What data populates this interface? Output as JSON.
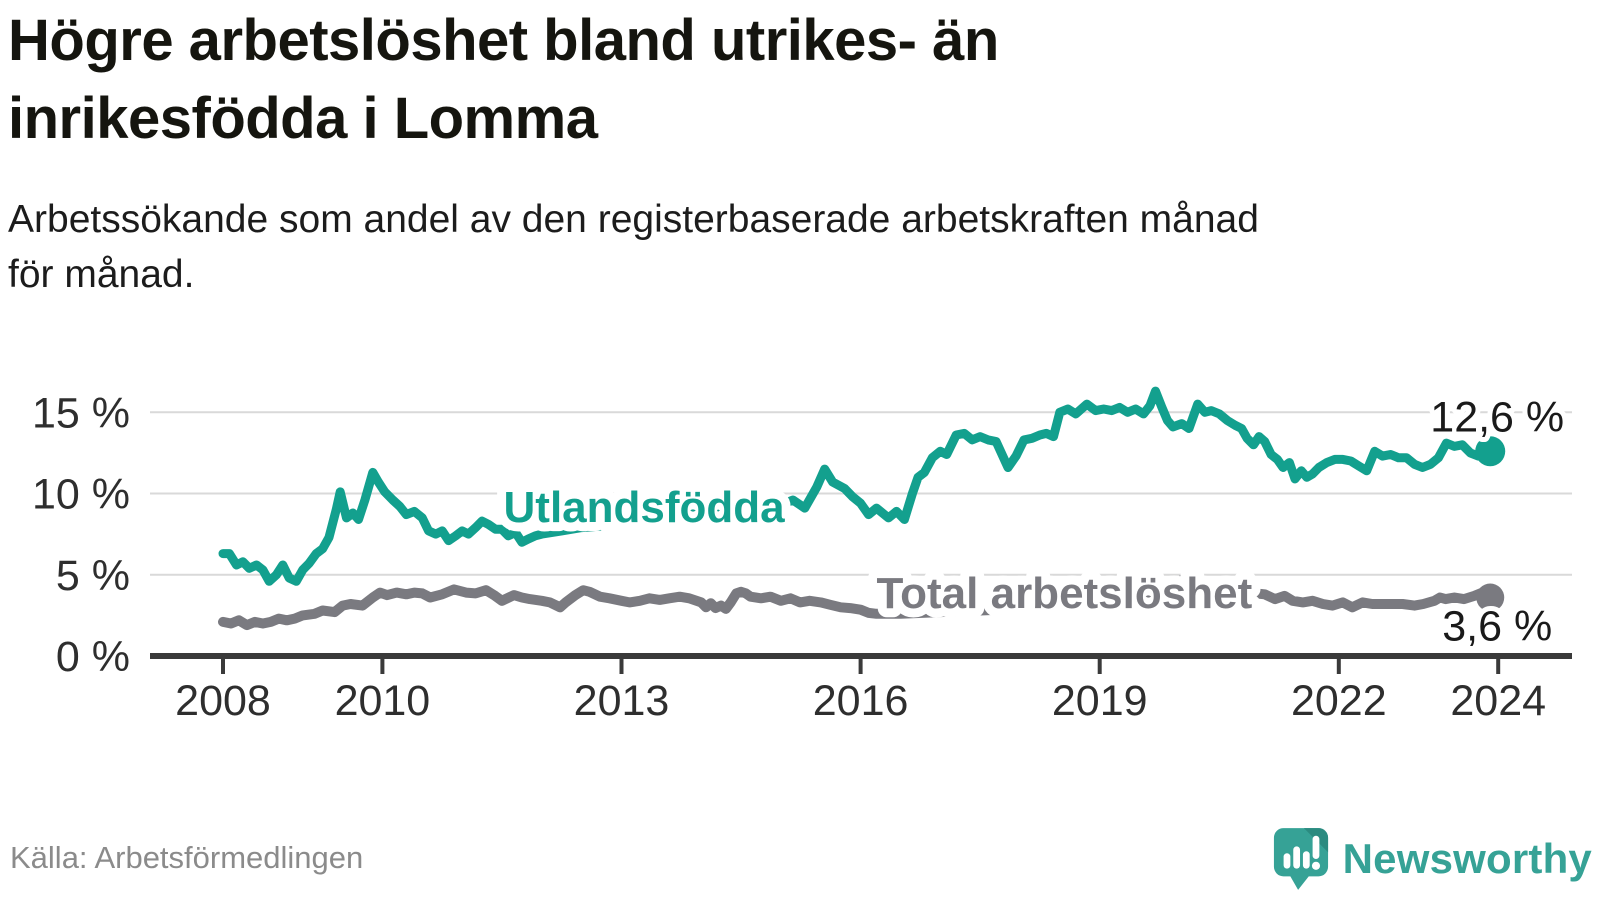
{
  "header": {
    "title": "Högre arbetslöshet bland utrikes- än\ninrikesfödda i Lomma",
    "subtitle": "Arbetssökande som andel av den registerbaserade arbetskraften månad\nför månad."
  },
  "footer": {
    "source": "Källa: Arbetsförmedlingen",
    "brand": "Newsworthy"
  },
  "chart_data": {
    "type": "line",
    "title": "Högre arbetslöshet bland utrikes- än inrikesfödda i Lomma",
    "subtitle": "Arbetssökande som andel av den registerbaserade arbetskraften månad för månad.",
    "grid": "horizontal",
    "legend": "inline-labels",
    "xlim": [
      2007.1,
      2024.9
    ],
    "ylim": [
      0,
      16.9
    ],
    "x_axis": {
      "ticks": [
        2008,
        2010,
        2013,
        2016,
        2019,
        2022,
        2024
      ],
      "labels": [
        "2008",
        "2010",
        "2013",
        "2016",
        "2019",
        "2022",
        "2024"
      ]
    },
    "y_axis": {
      "ticks": [
        0,
        5,
        10,
        15
      ],
      "labels": [
        "0 %",
        "5 %",
        "10 %",
        "15 %"
      ],
      "tick_suffix": " %"
    },
    "colors": {
      "grid": "#d9d9d9",
      "axis": "#3a3a3a",
      "axis_text": "#2e2e2e",
      "value_text": "#1a1a1a",
      "accent_teal": "#13a08e",
      "accent_gray": "#7a7a80"
    },
    "series": [
      {
        "id": "total",
        "name": "Total arbetslöshet",
        "color": "#7a7a80",
        "width": 10,
        "dot_r": 14,
        "end_label": "3,6 %",
        "end_value": 3.6,
        "value_dy": 43,
        "label_pos": [
          2016.2,
          2.95
        ],
        "points": [
          [
            2008.0,
            2.1
          ],
          [
            2008.1,
            2.0
          ],
          [
            2008.2,
            2.2
          ],
          [
            2008.3,
            1.9
          ],
          [
            2008.4,
            2.1
          ],
          [
            2008.5,
            2.0
          ],
          [
            2008.6,
            2.1
          ],
          [
            2008.7,
            2.3
          ],
          [
            2008.8,
            2.2
          ],
          [
            2008.9,
            2.3
          ],
          [
            2009.0,
            2.5
          ],
          [
            2009.15,
            2.6
          ],
          [
            2009.25,
            2.8
          ],
          [
            2009.4,
            2.7
          ],
          [
            2009.5,
            3.1
          ],
          [
            2009.6,
            3.2
          ],
          [
            2009.75,
            3.1
          ],
          [
            2009.88,
            3.6
          ],
          [
            2009.97,
            3.9
          ],
          [
            2010.06,
            3.75
          ],
          [
            2010.18,
            3.9
          ],
          [
            2010.3,
            3.8
          ],
          [
            2010.4,
            3.9
          ],
          [
            2010.5,
            3.85
          ],
          [
            2010.6,
            3.6
          ],
          [
            2010.75,
            3.8
          ],
          [
            2010.9,
            4.1
          ],
          [
            2011.05,
            3.9
          ],
          [
            2011.17,
            3.85
          ],
          [
            2011.3,
            4.05
          ],
          [
            2011.4,
            3.75
          ],
          [
            2011.5,
            3.4
          ],
          [
            2011.65,
            3.75
          ],
          [
            2011.75,
            3.6
          ],
          [
            2011.85,
            3.5
          ],
          [
            2012.0,
            3.4
          ],
          [
            2012.1,
            3.3
          ],
          [
            2012.23,
            3.0
          ],
          [
            2012.3,
            3.3
          ],
          [
            2012.42,
            3.75
          ],
          [
            2012.52,
            4.05
          ],
          [
            2012.6,
            3.95
          ],
          [
            2012.73,
            3.65
          ],
          [
            2012.85,
            3.55
          ],
          [
            2013.0,
            3.4
          ],
          [
            2013.1,
            3.3
          ],
          [
            2013.23,
            3.4
          ],
          [
            2013.35,
            3.55
          ],
          [
            2013.48,
            3.45
          ],
          [
            2013.6,
            3.55
          ],
          [
            2013.73,
            3.65
          ],
          [
            2013.85,
            3.55
          ],
          [
            2014.0,
            3.3
          ],
          [
            2014.06,
            3.0
          ],
          [
            2014.12,
            3.25
          ],
          [
            2014.18,
            2.95
          ],
          [
            2014.25,
            3.1
          ],
          [
            2014.31,
            2.9
          ],
          [
            2014.37,
            3.3
          ],
          [
            2014.44,
            3.85
          ],
          [
            2014.5,
            3.95
          ],
          [
            2014.56,
            3.85
          ],
          [
            2014.62,
            3.65
          ],
          [
            2014.75,
            3.55
          ],
          [
            2014.87,
            3.65
          ],
          [
            2015.0,
            3.4
          ],
          [
            2015.12,
            3.55
          ],
          [
            2015.24,
            3.3
          ],
          [
            2015.36,
            3.4
          ],
          [
            2015.5,
            3.3
          ],
          [
            2015.62,
            3.15
          ],
          [
            2015.75,
            3.0
          ],
          [
            2015.87,
            2.95
          ],
          [
            2016.0,
            2.85
          ],
          [
            2016.1,
            2.65
          ],
          [
            2016.2,
            2.6
          ],
          [
            2016.5,
            2.6
          ],
          [
            2017.0,
            2.7
          ],
          [
            2017.5,
            2.8
          ],
          [
            2018.0,
            2.9
          ],
          [
            2018.5,
            3.0
          ],
          [
            2019.0,
            3.1
          ],
          [
            2019.5,
            3.4
          ],
          [
            2019.8,
            3.8
          ],
          [
            2019.95,
            4.4
          ],
          [
            2020.1,
            4.9
          ],
          [
            2020.25,
            4.7
          ],
          [
            2020.4,
            4.4
          ],
          [
            2020.55,
            4.2
          ],
          [
            2020.75,
            4.0
          ],
          [
            2020.95,
            3.85
          ],
          [
            2021.07,
            3.8
          ],
          [
            2021.2,
            3.5
          ],
          [
            2021.32,
            3.7
          ],
          [
            2021.42,
            3.4
          ],
          [
            2021.55,
            3.3
          ],
          [
            2021.67,
            3.4
          ],
          [
            2021.8,
            3.2
          ],
          [
            2021.92,
            3.1
          ],
          [
            2022.05,
            3.3
          ],
          [
            2022.17,
            3.0
          ],
          [
            2022.3,
            3.3
          ],
          [
            2022.42,
            3.2
          ],
          [
            2022.6,
            3.2
          ],
          [
            2022.8,
            3.2
          ],
          [
            2022.95,
            3.1
          ],
          [
            2023.06,
            3.2
          ],
          [
            2023.2,
            3.4
          ],
          [
            2023.27,
            3.6
          ],
          [
            2023.34,
            3.5
          ],
          [
            2023.45,
            3.6
          ],
          [
            2023.57,
            3.5
          ],
          [
            2023.7,
            3.7
          ],
          [
            2023.8,
            3.9
          ],
          [
            2023.9,
            3.6
          ]
        ]
      },
      {
        "id": "utlandsfodda",
        "name": "Utlandsfödda",
        "color": "#13a08e",
        "width": 9,
        "dot_r": 15,
        "end_label": "12,6 %",
        "end_value": 12.6,
        "value_dy": -20,
        "label_pos": [
          2011.52,
          8.25
        ],
        "points": [
          [
            2008.0,
            6.3
          ],
          [
            2008.08,
            6.3
          ],
          [
            2008.17,
            5.6
          ],
          [
            2008.25,
            5.8
          ],
          [
            2008.33,
            5.4
          ],
          [
            2008.42,
            5.6
          ],
          [
            2008.5,
            5.3
          ],
          [
            2008.58,
            4.6
          ],
          [
            2008.67,
            5.0
          ],
          [
            2008.75,
            5.6
          ],
          [
            2008.83,
            4.8
          ],
          [
            2008.92,
            4.6
          ],
          [
            2009.0,
            5.3
          ],
          [
            2009.08,
            5.7
          ],
          [
            2009.17,
            6.3
          ],
          [
            2009.25,
            6.6
          ],
          [
            2009.33,
            7.3
          ],
          [
            2009.42,
            9.0
          ],
          [
            2009.47,
            10.1
          ],
          [
            2009.55,
            8.5
          ],
          [
            2009.63,
            8.8
          ],
          [
            2009.7,
            8.4
          ],
          [
            2009.78,
            9.6
          ],
          [
            2009.88,
            11.3
          ],
          [
            2009.95,
            10.7
          ],
          [
            2010.03,
            10.1
          ],
          [
            2010.13,
            9.6
          ],
          [
            2010.22,
            9.2
          ],
          [
            2010.3,
            8.7
          ],
          [
            2010.4,
            8.9
          ],
          [
            2010.5,
            8.5
          ],
          [
            2010.58,
            7.7
          ],
          [
            2010.67,
            7.5
          ],
          [
            2010.75,
            7.7
          ],
          [
            2010.83,
            7.1
          ],
          [
            2010.92,
            7.4
          ],
          [
            2011.0,
            7.7
          ],
          [
            2011.08,
            7.5
          ],
          [
            2011.17,
            7.9
          ],
          [
            2011.25,
            8.3
          ],
          [
            2011.33,
            8.1
          ],
          [
            2011.42,
            7.8
          ],
          [
            2011.5,
            7.8
          ],
          [
            2011.58,
            7.4
          ],
          [
            2011.67,
            7.6
          ],
          [
            2011.75,
            7.0
          ],
          [
            2011.83,
            7.2
          ],
          [
            2011.92,
            7.4
          ],
          [
            2012.0,
            7.5
          ],
          [
            2012.25,
            7.7
          ],
          [
            2012.5,
            7.9
          ],
          [
            2012.75,
            8.0
          ],
          [
            2013.0,
            8.1
          ],
          [
            2013.25,
            8.3
          ],
          [
            2013.5,
            8.5
          ],
          [
            2013.75,
            8.8
          ],
          [
            2014.0,
            9.0
          ],
          [
            2014.25,
            9.2
          ],
          [
            2014.5,
            9.4
          ],
          [
            2014.7,
            9.6
          ],
          [
            2014.85,
            9.9
          ],
          [
            2015.0,
            9.3
          ],
          [
            2015.15,
            9.6
          ],
          [
            2015.3,
            9.1
          ],
          [
            2015.45,
            10.4
          ],
          [
            2015.55,
            11.5
          ],
          [
            2015.65,
            10.7
          ],
          [
            2015.8,
            10.3
          ],
          [
            2015.9,
            9.8
          ],
          [
            2016.0,
            9.4
          ],
          [
            2016.1,
            8.7
          ],
          [
            2016.2,
            9.1
          ],
          [
            2016.35,
            8.5
          ],
          [
            2016.45,
            8.9
          ],
          [
            2016.55,
            8.4
          ],
          [
            2016.65,
            10.0
          ],
          [
            2016.72,
            11.0
          ],
          [
            2016.8,
            11.3
          ],
          [
            2016.9,
            12.2
          ],
          [
            2017.0,
            12.6
          ],
          [
            2017.08,
            12.4
          ],
          [
            2017.2,
            13.6
          ],
          [
            2017.3,
            13.7
          ],
          [
            2017.4,
            13.3
          ],
          [
            2017.5,
            13.5
          ],
          [
            2017.6,
            13.3
          ],
          [
            2017.7,
            13.2
          ],
          [
            2017.85,
            11.6
          ],
          [
            2017.95,
            12.3
          ],
          [
            2018.05,
            13.3
          ],
          [
            2018.15,
            13.4
          ],
          [
            2018.25,
            13.6
          ],
          [
            2018.33,
            13.7
          ],
          [
            2018.42,
            13.5
          ],
          [
            2018.5,
            15.0
          ],
          [
            2018.6,
            15.2
          ],
          [
            2018.7,
            14.9
          ],
          [
            2018.84,
            15.5
          ],
          [
            2018.95,
            15.1
          ],
          [
            2019.05,
            15.2
          ],
          [
            2019.15,
            15.1
          ],
          [
            2019.25,
            15.3
          ],
          [
            2019.35,
            15.0
          ],
          [
            2019.45,
            15.2
          ],
          [
            2019.55,
            14.9
          ],
          [
            2019.63,
            15.4
          ],
          [
            2019.7,
            16.3
          ],
          [
            2019.78,
            15.3
          ],
          [
            2019.85,
            14.5
          ],
          [
            2019.92,
            14.1
          ],
          [
            2020.03,
            14.3
          ],
          [
            2020.12,
            14.0
          ],
          [
            2020.23,
            15.5
          ],
          [
            2020.32,
            15.0
          ],
          [
            2020.4,
            15.1
          ],
          [
            2020.5,
            14.9
          ],
          [
            2020.6,
            14.5
          ],
          [
            2020.7,
            14.2
          ],
          [
            2020.78,
            14.0
          ],
          [
            2020.85,
            13.4
          ],
          [
            2020.93,
            13.0
          ],
          [
            2021.0,
            13.5
          ],
          [
            2021.07,
            13.2
          ],
          [
            2021.15,
            12.4
          ],
          [
            2021.23,
            12.1
          ],
          [
            2021.3,
            11.6
          ],
          [
            2021.38,
            11.9
          ],
          [
            2021.45,
            10.9
          ],
          [
            2021.53,
            11.4
          ],
          [
            2021.6,
            11.0
          ],
          [
            2021.67,
            11.2
          ],
          [
            2021.75,
            11.6
          ],
          [
            2021.85,
            11.9
          ],
          [
            2021.95,
            12.1
          ],
          [
            2022.05,
            12.1
          ],
          [
            2022.15,
            12.0
          ],
          [
            2022.25,
            11.7
          ],
          [
            2022.35,
            11.4
          ],
          [
            2022.45,
            12.6
          ],
          [
            2022.55,
            12.3
          ],
          [
            2022.65,
            12.4
          ],
          [
            2022.75,
            12.2
          ],
          [
            2022.85,
            12.2
          ],
          [
            2022.95,
            11.8
          ],
          [
            2023.05,
            11.6
          ],
          [
            2023.15,
            11.8
          ],
          [
            2023.25,
            12.2
          ],
          [
            2023.35,
            13.1
          ],
          [
            2023.45,
            12.9
          ],
          [
            2023.55,
            13.0
          ],
          [
            2023.65,
            12.5
          ],
          [
            2023.75,
            12.3
          ],
          [
            2023.82,
            12.8
          ],
          [
            2023.9,
            12.6
          ]
        ]
      }
    ]
  }
}
